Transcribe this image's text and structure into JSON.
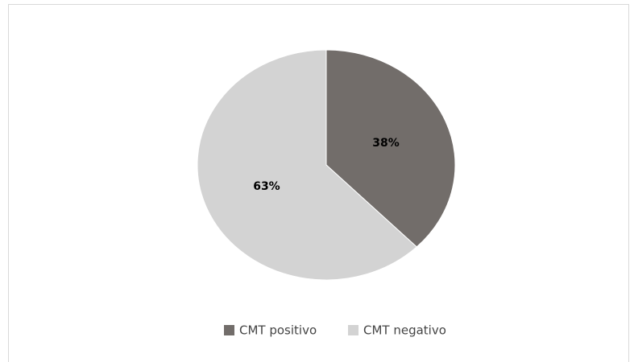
{
  "chart_data": {
    "type": "pie",
    "categories": [
      "CMT positivo",
      "CMT negativo"
    ],
    "values": [
      38,
      63
    ],
    "value_labels": [
      "38%",
      "63%"
    ],
    "colors": [
      "#726d6a",
      "#d3d3d3"
    ],
    "legend": "bottom"
  }
}
